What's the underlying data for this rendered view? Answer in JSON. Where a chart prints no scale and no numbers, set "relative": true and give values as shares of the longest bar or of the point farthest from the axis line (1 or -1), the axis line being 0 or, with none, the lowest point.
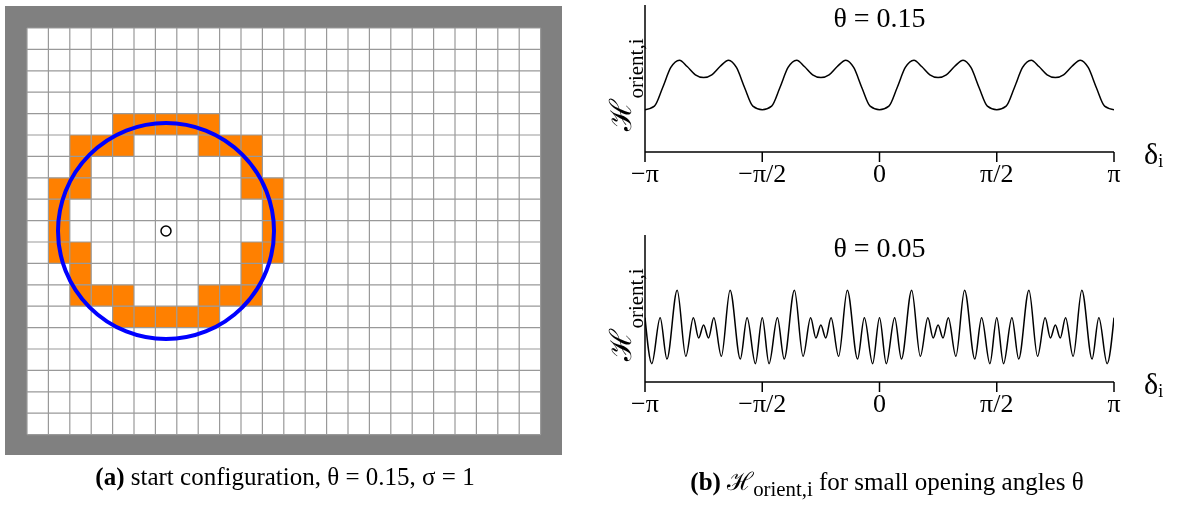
{
  "chart_data": [
    {
      "type": "other",
      "annotations": [
        "(a) start configuration, θ = 0.15, σ = 1"
      ]
    },
    {
      "type": "line",
      "title": "θ = 0.15",
      "xlabel": "δᵢ",
      "ylabel": "ℋ$_{orient,i}$",
      "relative": true,
      "tick_labels": "x",
      "xlim": [
        -3.142,
        3.142
      ],
      "xticks": [
        {
          "value": -3.142,
          "label": "−π"
        },
        {
          "value": -1.571,
          "label": "−π/2"
        },
        0,
        {
          "value": 1.571,
          "label": "π/2"
        },
        {
          "value": 3.142,
          "label": "π"
        }
      ],
      "series": [
        {
          "color": "#000000",
          "x": [
            -3.142,
            -3.016,
            -2.906,
            -2.796,
            -2.68,
            -2.577,
            -2.467,
            -2.356,
            -2.247,
            -2.137,
            -2.022,
            -1.917,
            -1.807,
            -1.697,
            -1.571,
            -1.445,
            -1.335,
            -1.225,
            -1.109,
            -1.006,
            -0.896,
            -0.785,
            -0.676,
            -0.566,
            -0.451,
            -0.346,
            -0.236,
            -0.126,
            0,
            0.126,
            0.236,
            0.346,
            0.462,
            0.565,
            0.675,
            0.785,
            0.895,
            1.005,
            1.12,
            1.225,
            1.335,
            1.445,
            1.571,
            1.697,
            1.807,
            1.917,
            2.033,
            2.136,
            2.246,
            2.356,
            2.466,
            2.576,
            2.691,
            2.796,
            2.906,
            3.016,
            3.142
          ],
          "values": [
            0.46,
            0.5,
            0.7,
            0.92,
            1,
            0.93,
            0.84,
            0.81,
            0.84,
            0.93,
            1,
            0.92,
            0.7,
            0.5,
            0.46,
            0.5,
            0.7,
            0.92,
            1,
            0.93,
            0.84,
            0.81,
            0.84,
            0.93,
            1,
            0.92,
            0.7,
            0.5,
            0.46,
            0.5,
            0.7,
            0.92,
            1,
            0.93,
            0.84,
            0.81,
            0.84,
            0.93,
            1,
            0.92,
            0.7,
            0.5,
            0.46,
            0.5,
            0.7,
            0.92,
            1,
            0.93,
            0.84,
            0.81,
            0.84,
            0.93,
            1,
            0.92,
            0.7,
            0.5,
            0.46
          ]
        }
      ]
    },
    {
      "type": "line",
      "title": "θ = 0.05",
      "xlabel": "δᵢ",
      "ylabel": "ℋ$_{orient,i}$",
      "relative": true,
      "tick_labels": "x",
      "xlim": [
        -3.142,
        3.142
      ],
      "xticks": [
        {
          "value": -3.142,
          "label": "−π"
        },
        {
          "value": -1.571,
          "label": "−π/2"
        },
        0,
        {
          "value": 1.571,
          "label": "π/2"
        },
        {
          "value": 3.142,
          "label": "π"
        }
      ],
      "annotations": [
        "(b) ℋ$_{orient,i}$ for small opening angles θ"
      ],
      "series": [
        {
          "color": "#000000",
          "x": [
            -3.142,
            -3.051,
            -2.939,
            -2.848,
            -2.711,
            -2.595,
            -2.494,
            -2.423,
            -2.357,
            -2.291,
            -2.22,
            -2.119,
            -2.002,
            -1.865,
            -1.774,
            -1.663,
            -1.571,
            -1.48,
            -1.368,
            -1.277,
            -1.14,
            -1.024,
            -0.923,
            -0.852,
            -0.786,
            -0.72,
            -0.649,
            -0.548,
            -0.431,
            -0.294,
            -0.203,
            -0.092,
            0,
            0.091,
            0.203,
            0.294,
            0.431,
            0.547,
            0.648,
            0.719,
            0.785,
            0.851,
            0.922,
            1.023,
            1.14,
            1.277,
            1.368,
            1.479,
            1.571,
            1.662,
            1.774,
            1.865,
            2.002,
            2.118,
            2.219,
            2.29,
            2.356,
            2.422,
            2.493,
            2.594,
            2.711,
            2.848,
            2.939,
            3.05,
            3.142
          ],
          "values": [
            0.7,
            0.2,
            0.7,
            0.25,
            1,
            0.28,
            0.7,
            0.48,
            0.62,
            0.48,
            0.7,
            0.28,
            1,
            0.25,
            0.7,
            0.2,
            0.7,
            0.2,
            0.7,
            0.25,
            1,
            0.28,
            0.7,
            0.48,
            0.62,
            0.48,
            0.7,
            0.28,
            1,
            0.25,
            0.7,
            0.2,
            0.7,
            0.2,
            0.7,
            0.25,
            1,
            0.28,
            0.7,
            0.48,
            0.62,
            0.48,
            0.7,
            0.28,
            1,
            0.25,
            0.7,
            0.2,
            0.7,
            0.2,
            0.7,
            0.25,
            1,
            0.28,
            0.7,
            0.48,
            0.62,
            0.48,
            0.7,
            0.28,
            1,
            0.25,
            0.7,
            0.2,
            0.7
          ]
        }
      ]
    }
  ]
}
